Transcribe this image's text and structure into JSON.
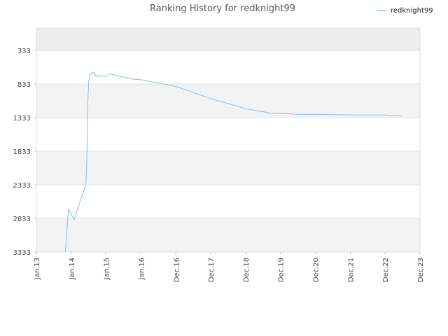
{
  "chart_data": {
    "type": "line",
    "title": "Ranking History for redknight99",
    "xlabel": "",
    "ylabel": "",
    "y_inverted": true,
    "ylim": [
      3333,
      0
    ],
    "y_ticks": [
      3333,
      2833,
      2333,
      1833,
      1333,
      833,
      333
    ],
    "x_ticks": [
      "Jan.13",
      "Jan.14",
      "Jan.15",
      "Jan.16",
      "Dec.16",
      "Dec.17",
      "Dec.18",
      "Dec.19",
      "Dec.20",
      "Dec.21",
      "Dec.22",
      "Dec.23"
    ],
    "legend": {
      "placement": "top-right",
      "entries": [
        "redknight99"
      ]
    },
    "series": [
      {
        "name": "redknight99",
        "color": "#88bbee",
        "points": [
          {
            "x": "2013-11",
            "y": 3333
          },
          {
            "x": "2013-12",
            "y": 2700
          },
          {
            "x": "2014-02",
            "y": 2850
          },
          {
            "x": "2014-02",
            "y": 2780
          },
          {
            "x": "2014-06",
            "y": 2333
          },
          {
            "x": "2014-06",
            "y": 2000
          },
          {
            "x": "2014-06",
            "y": 1150
          },
          {
            "x": "2014-07",
            "y": 800
          },
          {
            "x": "2014-07",
            "y": 680
          },
          {
            "x": "2014-08",
            "y": 690
          },
          {
            "x": "2014-08",
            "y": 660
          },
          {
            "x": "2014-09",
            "y": 670
          },
          {
            "x": "2014-09",
            "y": 720
          },
          {
            "x": "2014-10",
            "y": 720
          },
          {
            "x": "2014-10",
            "y": 700
          },
          {
            "x": "2014-11",
            "y": 710
          },
          {
            "x": "2015-01",
            "y": 720
          },
          {
            "x": "2015-02",
            "y": 680
          },
          {
            "x": "2015-03",
            "y": 690
          },
          {
            "x": "2015-10",
            "y": 760
          },
          {
            "x": "2016-01",
            "y": 770
          },
          {
            "x": "2016-12",
            "y": 870
          },
          {
            "x": "2017-12",
            "y": 1050
          },
          {
            "x": "2018-12",
            "y": 1200
          },
          {
            "x": "2019-09",
            "y": 1270
          },
          {
            "x": "2020-01",
            "y": 1270
          },
          {
            "x": "2020-06",
            "y": 1285
          },
          {
            "x": "2021-01",
            "y": 1285
          },
          {
            "x": "2022-01",
            "y": 1295
          },
          {
            "x": "2022-12",
            "y": 1295
          },
          {
            "x": "2023-01",
            "y": 1305
          },
          {
            "x": "2023-06",
            "y": 1310
          }
        ]
      }
    ]
  }
}
